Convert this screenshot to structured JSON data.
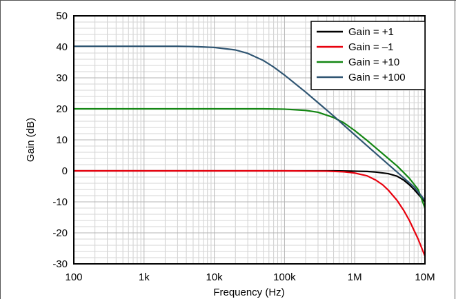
{
  "chart_data": {
    "type": "line",
    "title": "",
    "xlabel": "Frequency (Hz)",
    "ylabel": "Gain (dB)",
    "x_scale": "log",
    "xlim": [
      100,
      10000000
    ],
    "ylim": [
      -30,
      50
    ],
    "grid": true,
    "legend_position": "top-right",
    "x_ticks": [
      {
        "value": 100,
        "label": "100"
      },
      {
        "value": 1000,
        "label": "1k"
      },
      {
        "value": 10000,
        "label": "10k"
      },
      {
        "value": 100000,
        "label": "100k"
      },
      {
        "value": 1000000,
        "label": "1M"
      },
      {
        "value": 10000000,
        "label": "10M"
      }
    ],
    "y_ticks": [
      50,
      40,
      30,
      20,
      10,
      0,
      -10,
      -20,
      -30
    ],
    "series": [
      {
        "name": "Gain = +1",
        "color": "#000000",
        "x": [
          100,
          100000,
          500000,
          1000000,
          1500000,
          2000000,
          3000000,
          4000000,
          5000000,
          6000000,
          7000000,
          8000000,
          10000000
        ],
        "y": [
          0,
          0,
          0,
          -0.1,
          -0.2,
          -0.4,
          -0.9,
          -1.7,
          -3,
          -4.5,
          -6,
          -7.5,
          -10
        ]
      },
      {
        "name": "Gain = –1",
        "color": "#e8000d",
        "x": [
          100,
          100000,
          400000,
          700000,
          1000000,
          1500000,
          2000000,
          2500000,
          3000000,
          4000000,
          5000000,
          6000000,
          8000000,
          10000000
        ],
        "y": [
          0,
          0,
          -0.1,
          -0.3,
          -0.7,
          -1.6,
          -3,
          -4.5,
          -6.2,
          -9.5,
          -12.8,
          -16,
          -22,
          -27.5
        ]
      },
      {
        "name": "Gain = +10",
        "color": "#138613",
        "x": [
          100,
          50000,
          100000,
          200000,
          300000,
          500000,
          700000,
          1000000,
          1500000,
          2000000,
          3000000,
          4000000,
          5000000,
          6000000,
          8000000,
          10000000
        ],
        "y": [
          20,
          20,
          19.9,
          19.5,
          18.9,
          17.2,
          15.5,
          13,
          9.8,
          7.4,
          4,
          1.6,
          -0.6,
          -2.4,
          -6,
          -12
        ]
      },
      {
        "name": "Gain = +100",
        "color": "#2f5572",
        "x": [
          100,
          3000,
          5000,
          10000,
          20000,
          30000,
          50000,
          70000,
          100000,
          200000,
          300000,
          500000,
          1000000,
          2000000,
          3000000,
          5000000,
          7000000,
          10000000
        ],
        "y": [
          40.2,
          40.2,
          40.1,
          39.8,
          39,
          37.9,
          35.6,
          33.5,
          30.9,
          25.4,
          22,
          17.7,
          11.6,
          5.6,
          2.1,
          -2.3,
          -5.2,
          -9.5
        ]
      }
    ]
  }
}
